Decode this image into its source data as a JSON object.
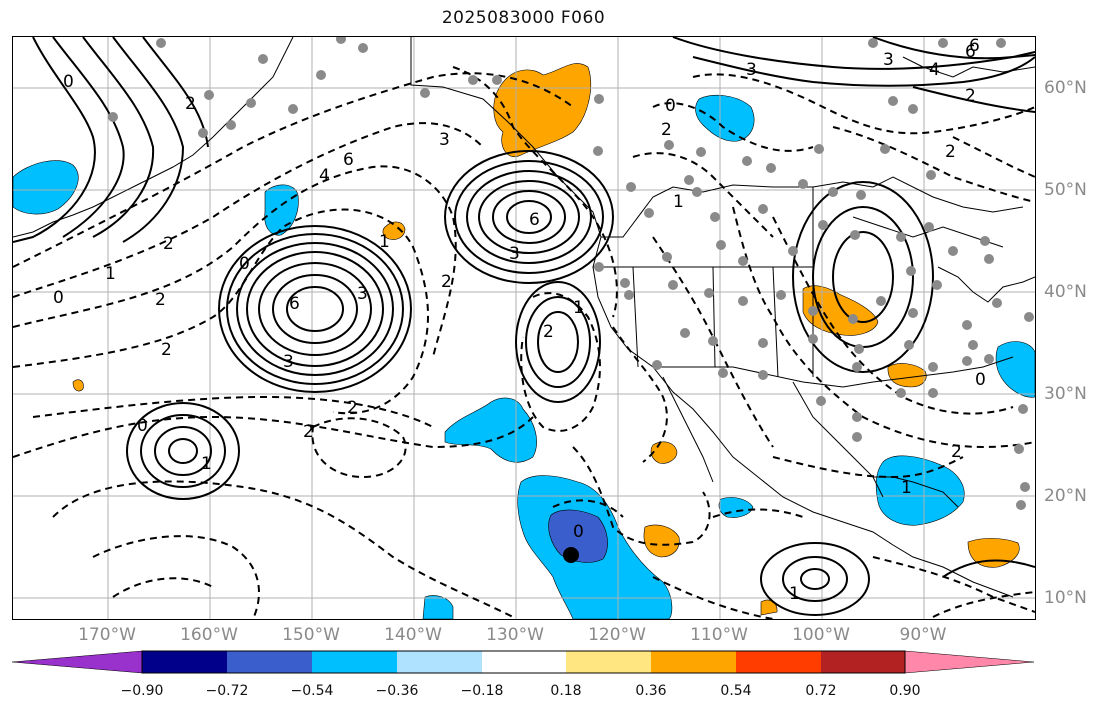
{
  "title": "2025083000 F060",
  "latitude_labels": [
    "60°N",
    "50°N",
    "40°N",
    "30°N",
    "20°N",
    "10°N"
  ],
  "longitude_labels": [
    "170°W",
    "160°W",
    "150°W",
    "140°W",
    "130°W",
    "120°W",
    "110°W",
    "100°W",
    "90°W"
  ],
  "colorbar": {
    "ticks": [
      "−0.90",
      "−0.72",
      "−0.54",
      "−0.36",
      "−0.18",
      "0.18",
      "0.36",
      "0.54",
      "0.72",
      "0.90"
    ],
    "colors": [
      "#9932cc",
      "#00008b",
      "#3a5fcd",
      "#00bfff",
      "#aee2ff",
      "#ffffff",
      "#ffe680",
      "#ffa500",
      "#ff3d00",
      "#b22222",
      "#ff88aa"
    ]
  },
  "contour_labels": [
    "3",
    "6",
    "6",
    "3",
    "1",
    "2",
    "0",
    "3",
    "2",
    "2",
    "1",
    "0",
    "2",
    "2",
    "4",
    "6",
    "3",
    "2",
    "1",
    "0",
    "0",
    "1",
    "2",
    "2",
    "6",
    "3",
    "2",
    "0",
    "1",
    "2",
    "0",
    "1",
    "0",
    "1",
    "2",
    "3",
    "4",
    "2",
    "6"
  ],
  "colors": {
    "frame": "#000000",
    "grid": "#b0b0b0",
    "station_dot": "#8a8a8a",
    "label_gray": "#8a8a8a"
  }
}
